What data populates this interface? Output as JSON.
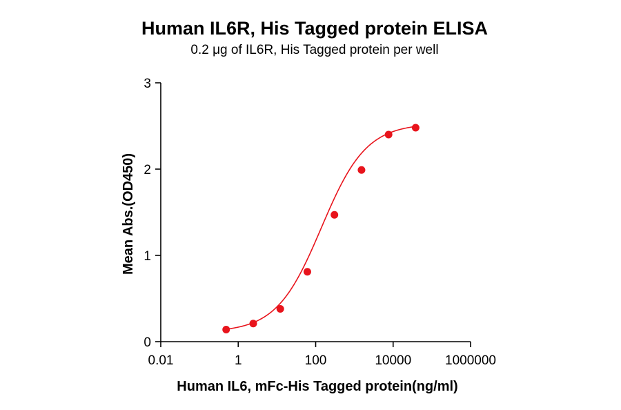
{
  "chart_data": {
    "type": "scatter",
    "title": "Human IL6R, His Tagged protein ELISA",
    "subtitle": "0.2 μg of IL6R, His Tagged protein per well",
    "xlabel": "Human IL6, mFc-His Tagged protein(ng/ml)",
    "ylabel": "Mean Abs.(OD450)",
    "x_scale": "log",
    "xlim": [
      0.01,
      1000000
    ],
    "ylim": [
      0,
      3
    ],
    "x_ticks": [
      0.01,
      1,
      100,
      10000,
      1000000
    ],
    "x_tick_labels": [
      "0.01",
      "1",
      "100",
      "10000",
      "1000000"
    ],
    "y_ticks": [
      0,
      1,
      2,
      3
    ],
    "y_tick_labels": [
      "0",
      "1",
      "2",
      "3"
    ],
    "grid": false,
    "series": [
      {
        "points": [
          {
            "x": 0.488,
            "y": 0.14
          },
          {
            "x": 2.44,
            "y": 0.21
          },
          {
            "x": 12.2,
            "y": 0.38
          },
          {
            "x": 61.0,
            "y": 0.81
          },
          {
            "x": 305,
            "y": 1.47
          },
          {
            "x": 1526,
            "y": 1.99
          },
          {
            "x": 7629,
            "y": 2.4
          },
          {
            "x": 38147,
            "y": 2.48
          }
        ],
        "color": "#e8141c",
        "fit": "4PL",
        "fit_color": "#e8141c"
      }
    ]
  }
}
